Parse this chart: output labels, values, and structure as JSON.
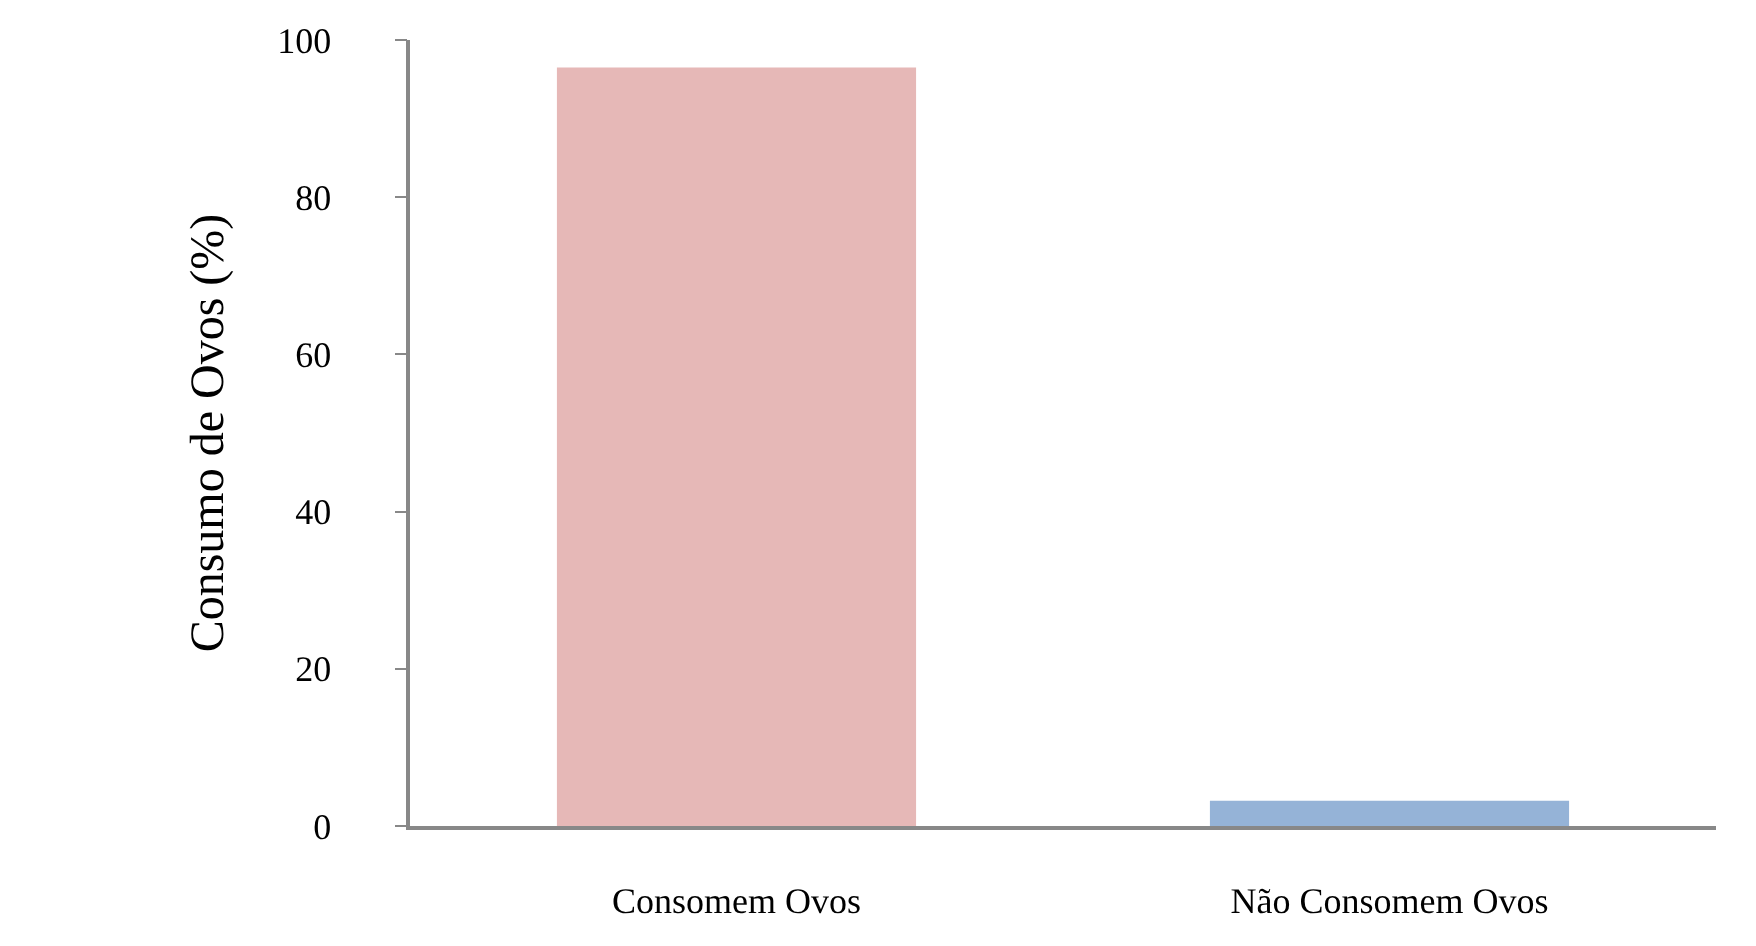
{
  "chart_data": {
    "type": "bar",
    "ylabel": "Consumo de Ovos (%)",
    "categories": [
      "Consomem Ovos",
      "Não Consomem Ovos"
    ],
    "values": [
      96.5,
      3.2
    ],
    "colors": [
      "#e6b8b7",
      "#95b3d7"
    ],
    "ylim": [
      0,
      100
    ],
    "yticks": [
      0,
      20,
      40,
      60,
      80,
      100
    ],
    "grid": false
  }
}
